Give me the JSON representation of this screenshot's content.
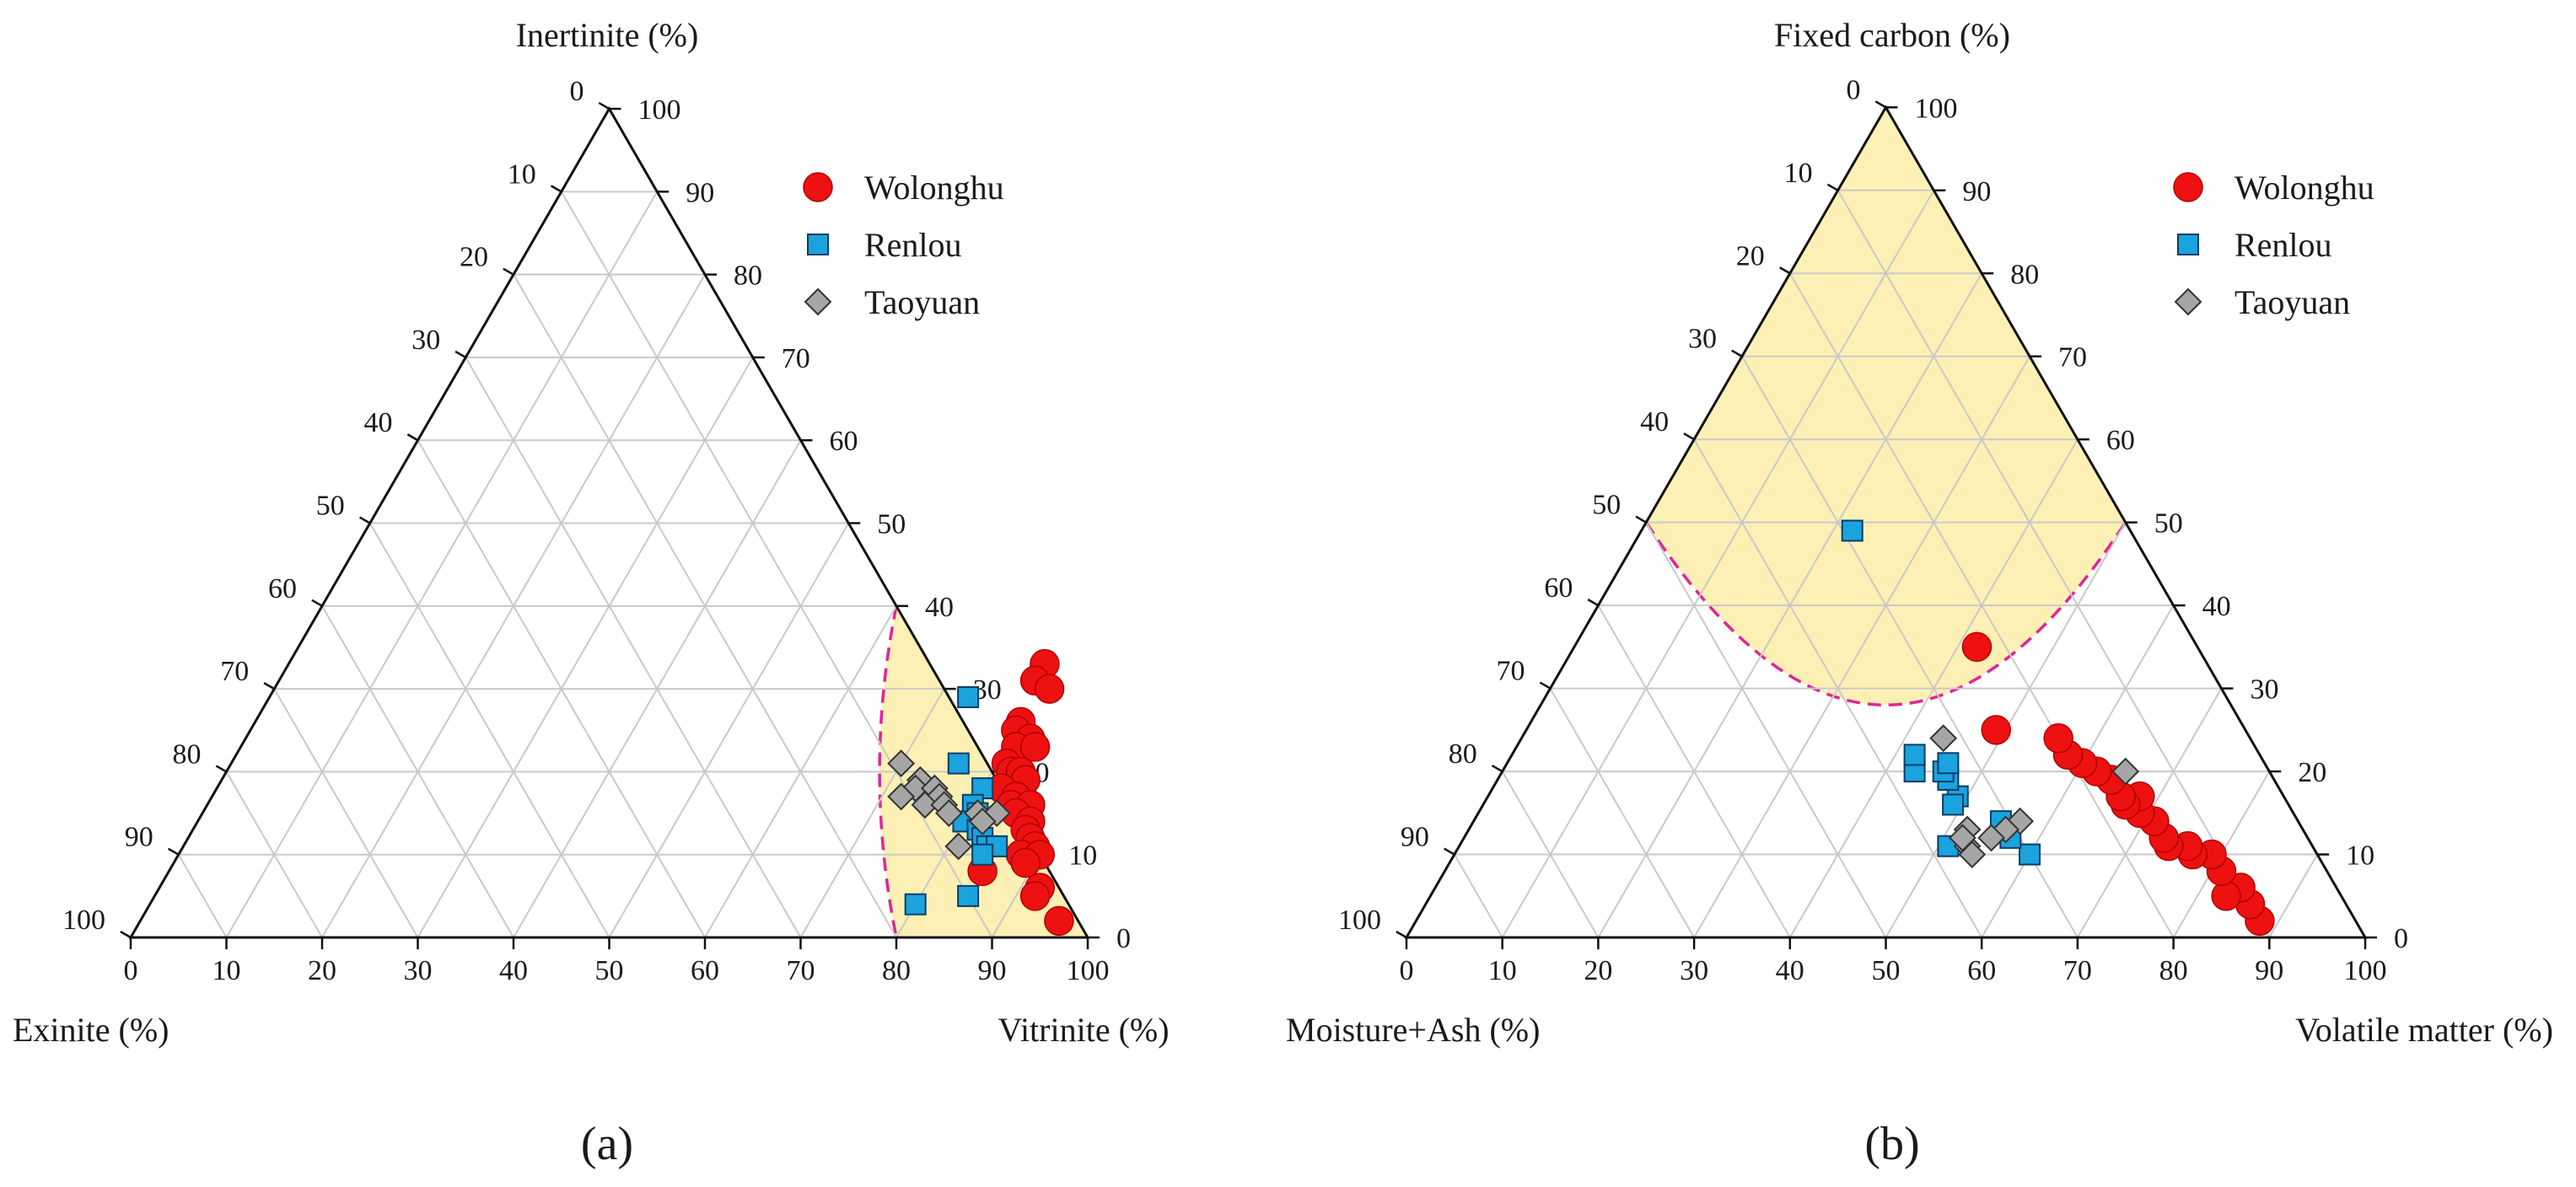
{
  "chart_data": [
    {
      "type": "scatter",
      "subtype": "ternary",
      "panel_label": "(a)",
      "axes": {
        "top": "Inertinite (%)",
        "left": "Exinite (%)",
        "right": "Vitrinite (%)"
      },
      "ticks": {
        "top_axis": [
          "0",
          "10",
          "20",
          "30",
          "40",
          "50",
          "60",
          "70",
          "80",
          "90",
          "100"
        ],
        "right_axis": [
          "100",
          "90",
          "80",
          "70",
          "60",
          "50",
          "40",
          "30",
          "20",
          "10",
          "0"
        ],
        "bottom_axis": [
          "0",
          "10",
          "20",
          "30",
          "40",
          "50",
          "60",
          "70",
          "80",
          "90",
          "100"
        ]
      },
      "grid": true,
      "legend_position": "top-right",
      "region": "Vitrinite ≥ 80% (shaded, dashed boundary)",
      "series": [
        {
          "name": "Wolonghu",
          "marker": "circle",
          "color": "#ee1111",
          "points": [
            [
              79,
              33,
              0
            ],
            [
              79,
              31,
              2
            ],
            [
              81,
              30,
              0
            ],
            [
              80,
              26,
              2
            ],
            [
              80,
              25,
              1
            ],
            [
              82,
              24,
              0
            ],
            [
              81,
              23,
              1
            ],
            [
              83,
              23,
              0
            ],
            [
              81,
              21,
              0
            ],
            [
              82,
              20,
              1
            ],
            [
              83,
              20,
              0
            ],
            [
              84,
              19,
              0
            ],
            [
              82,
              18,
              2
            ],
            [
              84,
              17,
              0
            ],
            [
              84,
              16,
              1
            ],
            [
              86,
              16,
              0
            ],
            [
              85,
              15,
              1
            ],
            [
              87,
              14,
              0
            ],
            [
              87,
              13,
              1
            ],
            [
              88,
              12,
              0
            ],
            [
              89,
              11,
              0
            ],
            [
              88,
              10,
              2
            ],
            [
              90,
              10,
              0
            ],
            [
              89,
              9,
              1
            ],
            [
              85,
              8,
              7
            ],
            [
              92,
              6,
              2
            ],
            [
              92,
              5,
              3
            ],
            [
              96,
              2,
              2
            ]
          ]
        },
        {
          "name": "Renlou",
          "marker": "square",
          "color": "#1aa3dc",
          "points": [
            [
              73,
              29,
              0
            ],
            [
              76,
              21,
              3
            ],
            [
              80,
              18,
              2
            ],
            [
              80,
              16,
              4
            ],
            [
              81,
              15,
              4
            ],
            [
              80,
              14,
              6
            ],
            [
              82,
              13,
              5
            ],
            [
              83,
              12,
              5
            ],
            [
              84,
              11,
              5
            ],
            [
              85,
              11,
              4
            ],
            [
              84,
              10,
              6
            ],
            [
              85,
              5,
              10
            ],
            [
              80,
              4,
              16
            ]
          ]
        },
        {
          "name": "Taoyuan",
          "marker": "diamond",
          "color": "#a6a6a6",
          "points": [
            [
              70,
              21,
              9
            ],
            [
              73,
              19,
              8
            ],
            [
              73,
              18,
              9
            ],
            [
              72,
              17,
              11
            ],
            [
              75,
              18,
              7
            ],
            [
              76,
              17,
              7
            ],
            [
              75,
              16,
              9
            ],
            [
              77,
              16,
              7
            ],
            [
              78,
              15,
              7
            ],
            [
              81,
              15,
              4
            ],
            [
              83,
              15,
              2
            ],
            [
              82,
              14,
              4
            ],
            [
              81,
              11,
              8
            ]
          ]
        }
      ]
    },
    {
      "type": "scatter",
      "subtype": "ternary",
      "panel_label": "(b)",
      "axes": {
        "top": "Fixed carbon (%)",
        "left": "Moisture+Ash (%)",
        "right": "Volatile matter (%)"
      },
      "ticks": {
        "top_axis": [
          "0",
          "10",
          "20",
          "30",
          "40",
          "50",
          "60",
          "70",
          "80",
          "90",
          "100"
        ],
        "right_axis": [
          "100",
          "90",
          "80",
          "70",
          "60",
          "50",
          "40",
          "30",
          "20",
          "10",
          "0"
        ],
        "bottom_axis": [
          "0",
          "10",
          "20",
          "30",
          "40",
          "50",
          "60",
          "70",
          "80",
          "90",
          "100"
        ]
      },
      "grid": true,
      "legend_position": "top-right",
      "region": "Fixed carbon ≥ 50% with curved lower boundary (shaded, dashed)",
      "series": [
        {
          "name": "Wolonghu",
          "marker": "circle",
          "color": "#ee1111",
          "points": [
            [
              88,
              2,
              10
            ],
            [
              86,
              4,
              10
            ],
            [
              84,
              6,
              10
            ],
            [
              83,
              5,
              12
            ],
            [
              81,
              8,
              11
            ],
            [
              79,
              10,
              11
            ],
            [
              77,
              10,
              13
            ],
            [
              76,
              11,
              13
            ],
            [
              74,
              11,
              15
            ],
            [
              73,
              12,
              15
            ],
            [
              71,
              14,
              15
            ],
            [
              69,
              15,
              16
            ],
            [
              68,
              17,
              15
            ],
            [
              67,
              16,
              17
            ],
            [
              66,
              17,
              17
            ],
            [
              64,
              19,
              17
            ],
            [
              62,
              20,
              18
            ],
            [
              60,
              21,
              19
            ],
            [
              58,
              22,
              20
            ],
            [
              56,
              24,
              20
            ],
            [
              49,
              25,
              26
            ],
            [
              42,
              35,
              23
            ]
          ]
        },
        {
          "name": "Renlou",
          "marker": "square",
          "color": "#1aa3dc",
          "points": [
            [
              60,
              10,
              30
            ],
            [
              57,
              12,
              31
            ],
            [
              55,
              14,
              31
            ],
            [
              51,
              11,
              38
            ],
            [
              49,
              17,
              34
            ],
            [
              49,
              16,
              35
            ],
            [
              47,
              19,
              34
            ],
            [
              46,
              20,
              34
            ],
            [
              46,
              21,
              33
            ],
            [
              43,
              20,
              37
            ],
            [
              42,
              22,
              36
            ],
            [
              22,
              49,
              29
            ]
          ]
        },
        {
          "name": "Taoyuan",
          "marker": "diamond",
          "color": "#a6a6a6",
          "points": [
            [
              65,
              20,
              15
            ],
            [
              57,
              14,
              29
            ],
            [
              56,
              13,
              31
            ],
            [
              55,
              12,
              33
            ],
            [
              53,
              11,
              36
            ],
            [
              52,
              13,
              35
            ],
            [
              54,
              10,
              36
            ],
            [
              52,
              12,
              36
            ],
            [
              44,
              24,
              32
            ]
          ]
        }
      ]
    }
  ]
}
